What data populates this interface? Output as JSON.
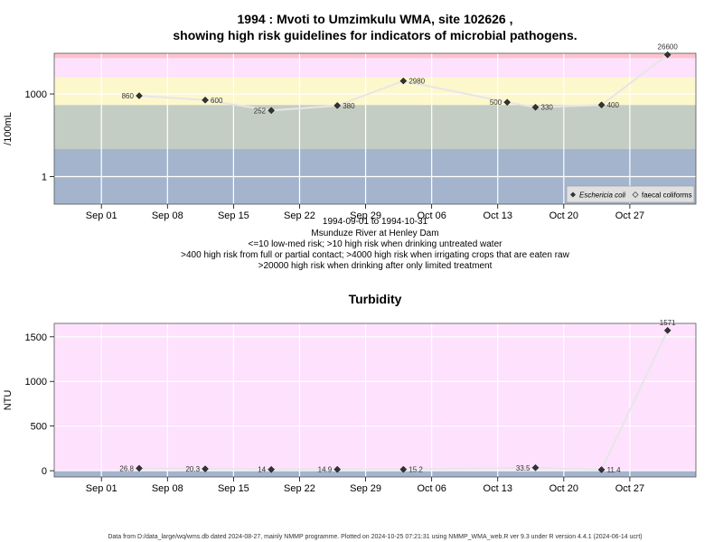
{
  "chart_data": [
    {
      "type": "line",
      "title": [
        "1994 : Mvoti to Umzimkulu WMA, site 102626 ,",
        "showing high risk guidelines for indicators of microbial pathogens."
      ],
      "ylabel": "/100mL",
      "yscale": "log",
      "yticks": [
        {
          "v": 1,
          "label": "1"
        },
        {
          "v": 1000,
          "label": "1000"
        }
      ],
      "ylim": [
        0.1,
        30000
      ],
      "xlim": [
        "1994-08-27",
        "1994-11-03"
      ],
      "xticks": [
        {
          "date": "1994-09-01",
          "label": "Sep 01"
        },
        {
          "date": "1994-09-08",
          "label": "Sep 08"
        },
        {
          "date": "1994-09-15",
          "label": "Sep 15"
        },
        {
          "date": "1994-09-22",
          "label": "Sep 22"
        },
        {
          "date": "1994-09-29",
          "label": "Sep 29"
        },
        {
          "date": "1994-10-06",
          "label": "Oct 06"
        },
        {
          "date": "1994-10-13",
          "label": "Oct 13"
        },
        {
          "date": "1994-10-20",
          "label": "Oct 20"
        },
        {
          "date": "1994-10-27",
          "label": "Oct 27"
        }
      ],
      "bands": [
        {
          "from": 0.1,
          "to": 10,
          "color": "#a3b4cc"
        },
        {
          "from": 10,
          "to": 400,
          "color": "#c4cdc4"
        },
        {
          "from": 400,
          "to": 4000,
          "color": "#fdf7cc"
        },
        {
          "from": 4000,
          "to": 20000,
          "color": "#fde1fd"
        },
        {
          "from": 20000,
          "to": 30000,
          "color": "#fcc3d0"
        }
      ],
      "series": [
        {
          "name": "Eschericia coli",
          "values": [
            {
              "x": "1994-09-05",
              "y": 860,
              "label": "860"
            },
            {
              "x": "1994-09-12",
              "y": 600,
              "label": "600"
            },
            {
              "x": "1994-09-19",
              "y": 252,
              "label": "252"
            },
            {
              "x": "1994-09-26",
              "y": 380,
              "label": "380"
            },
            {
              "x": "1994-10-03",
              "y": 2980,
              "label": "2980"
            },
            {
              "x": "1994-10-14",
              "y": 500,
              "label": "500"
            },
            {
              "x": "1994-10-17",
              "y": 330,
              "label": "330"
            },
            {
              "x": "1994-10-24",
              "y": 400,
              "label": "400"
            },
            {
              "x": "1994-10-31",
              "y": 26600,
              "label": "26600"
            }
          ]
        }
      ],
      "legend": {
        "position": "bottom-right",
        "entries": [
          "Eschericia coli",
          "faecal coliforms"
        ]
      },
      "caption": [
        "1994-09-01 to 1994-10-31",
        "Msunduze River at Henley Dam",
        "<=10 low-med risk; >10 high risk when drinking untreated water",
        ">400 high risk from full or partial contact; >4000 high risk when irrigating crops that are eaten raw",
        ">20000 high risk when drinking after only limited treatment"
      ],
      "grid": true
    },
    {
      "type": "line",
      "title": "Turbidity",
      "ylabel": "NTU",
      "yticks": [
        {
          "v": 0,
          "label": "0"
        },
        {
          "v": 500,
          "label": "500"
        },
        {
          "v": 1000,
          "label": "1000"
        },
        {
          "v": 1500,
          "label": "1500"
        }
      ],
      "ylim": [
        -70,
        1650
      ],
      "xlim": [
        "1994-08-27",
        "1994-11-03"
      ],
      "xticks": [
        {
          "date": "1994-09-01",
          "label": "Sep 01"
        },
        {
          "date": "1994-09-08",
          "label": "Sep 08"
        },
        {
          "date": "1994-09-15",
          "label": "Sep 15"
        },
        {
          "date": "1994-09-22",
          "label": "Sep 22"
        },
        {
          "date": "1994-09-29",
          "label": "Sep 29"
        },
        {
          "date": "1994-10-06",
          "label": "Oct 06"
        },
        {
          "date": "1994-10-13",
          "label": "Oct 13"
        },
        {
          "date": "1994-10-20",
          "label": "Oct 20"
        },
        {
          "date": "1994-10-27",
          "label": "Oct 27"
        }
      ],
      "bands": [
        {
          "from": -70,
          "to": 1,
          "color": "#a3b4cc"
        },
        {
          "from": 1,
          "to": 5,
          "color": "#c4cdc4"
        },
        {
          "from": 5,
          "to": 1650,
          "color": "#fde1fd"
        }
      ],
      "series": [
        {
          "name": "Turbidity",
          "values": [
            {
              "x": "1994-09-05",
              "y": 26.8,
              "label": "26.8"
            },
            {
              "x": "1994-09-12",
              "y": 20.3,
              "label": "20.3"
            },
            {
              "x": "1994-09-19",
              "y": 14,
              "label": "14"
            },
            {
              "x": "1994-09-26",
              "y": 14.9,
              "label": "14.9"
            },
            {
              "x": "1994-10-03",
              "y": 15.2,
              "label": "15.2"
            },
            {
              "x": "1994-10-17",
              "y": 33.5,
              "label": "33.5"
            },
            {
              "x": "1994-10-24",
              "y": 11.4,
              "label": "11.4"
            },
            {
              "x": "1994-10-31",
              "y": 1571,
              "label": "1571"
            }
          ]
        }
      ],
      "grid": true
    }
  ],
  "footer": "Data from D:/data_large/wq/wms.db dated 2024-08-27, mainly NMMP programme. Plotted on 2024-10-25 07:21:31 using NMMP_WMA_web.R ver 9.3 under R version 4.4.1 (2024-06-14 ucrt)"
}
